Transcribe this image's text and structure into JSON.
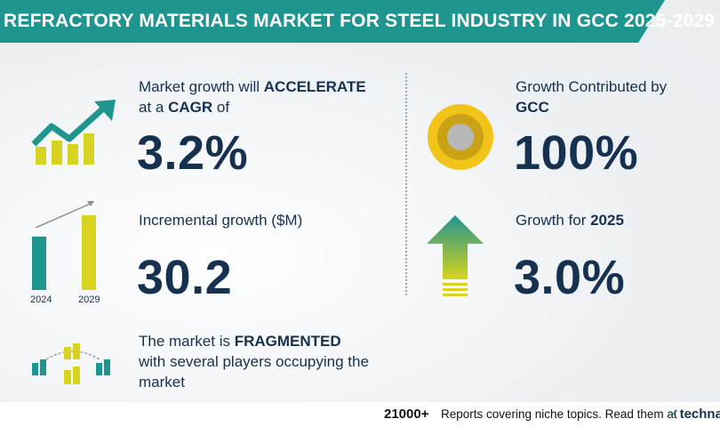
{
  "header": {
    "title": "REFRACTORY MATERIALS MARKET FOR STEEL INDUSTRY IN GCC 2025-2029"
  },
  "cagr": {
    "label_pre": "Market growth will ",
    "label_bold1": "ACCELERATE",
    "label_mid": "at a ",
    "label_bold2": "CAGR",
    "label_post": "  of",
    "value": "3.2%"
  },
  "incremental": {
    "label": "Incremental growth ($M)",
    "value": "30.2",
    "bar_years": [
      "2024",
      "2029"
    ]
  },
  "fragmented": {
    "label_pre": "The market is ",
    "label_bold": "FRAGMENTED",
    "label_line2": "with several players occupying the",
    "label_line3": "market"
  },
  "contribution": {
    "label_line1": "Growth Contributed by",
    "label_bold": "GCC",
    "value": "100%"
  },
  "yoy": {
    "label_pre": "Growth for  ",
    "label_bold": "2025",
    "value": "3.0%"
  },
  "footer": {
    "count": "21000+",
    "text": "Reports covering niche topics. Read them at",
    "brand_tick": "✓",
    "brand": "technav"
  },
  "colors": {
    "teal": "#1f958f",
    "navy": "#15314f",
    "yellow": "#d8d31e",
    "gold": "#f2c318"
  }
}
